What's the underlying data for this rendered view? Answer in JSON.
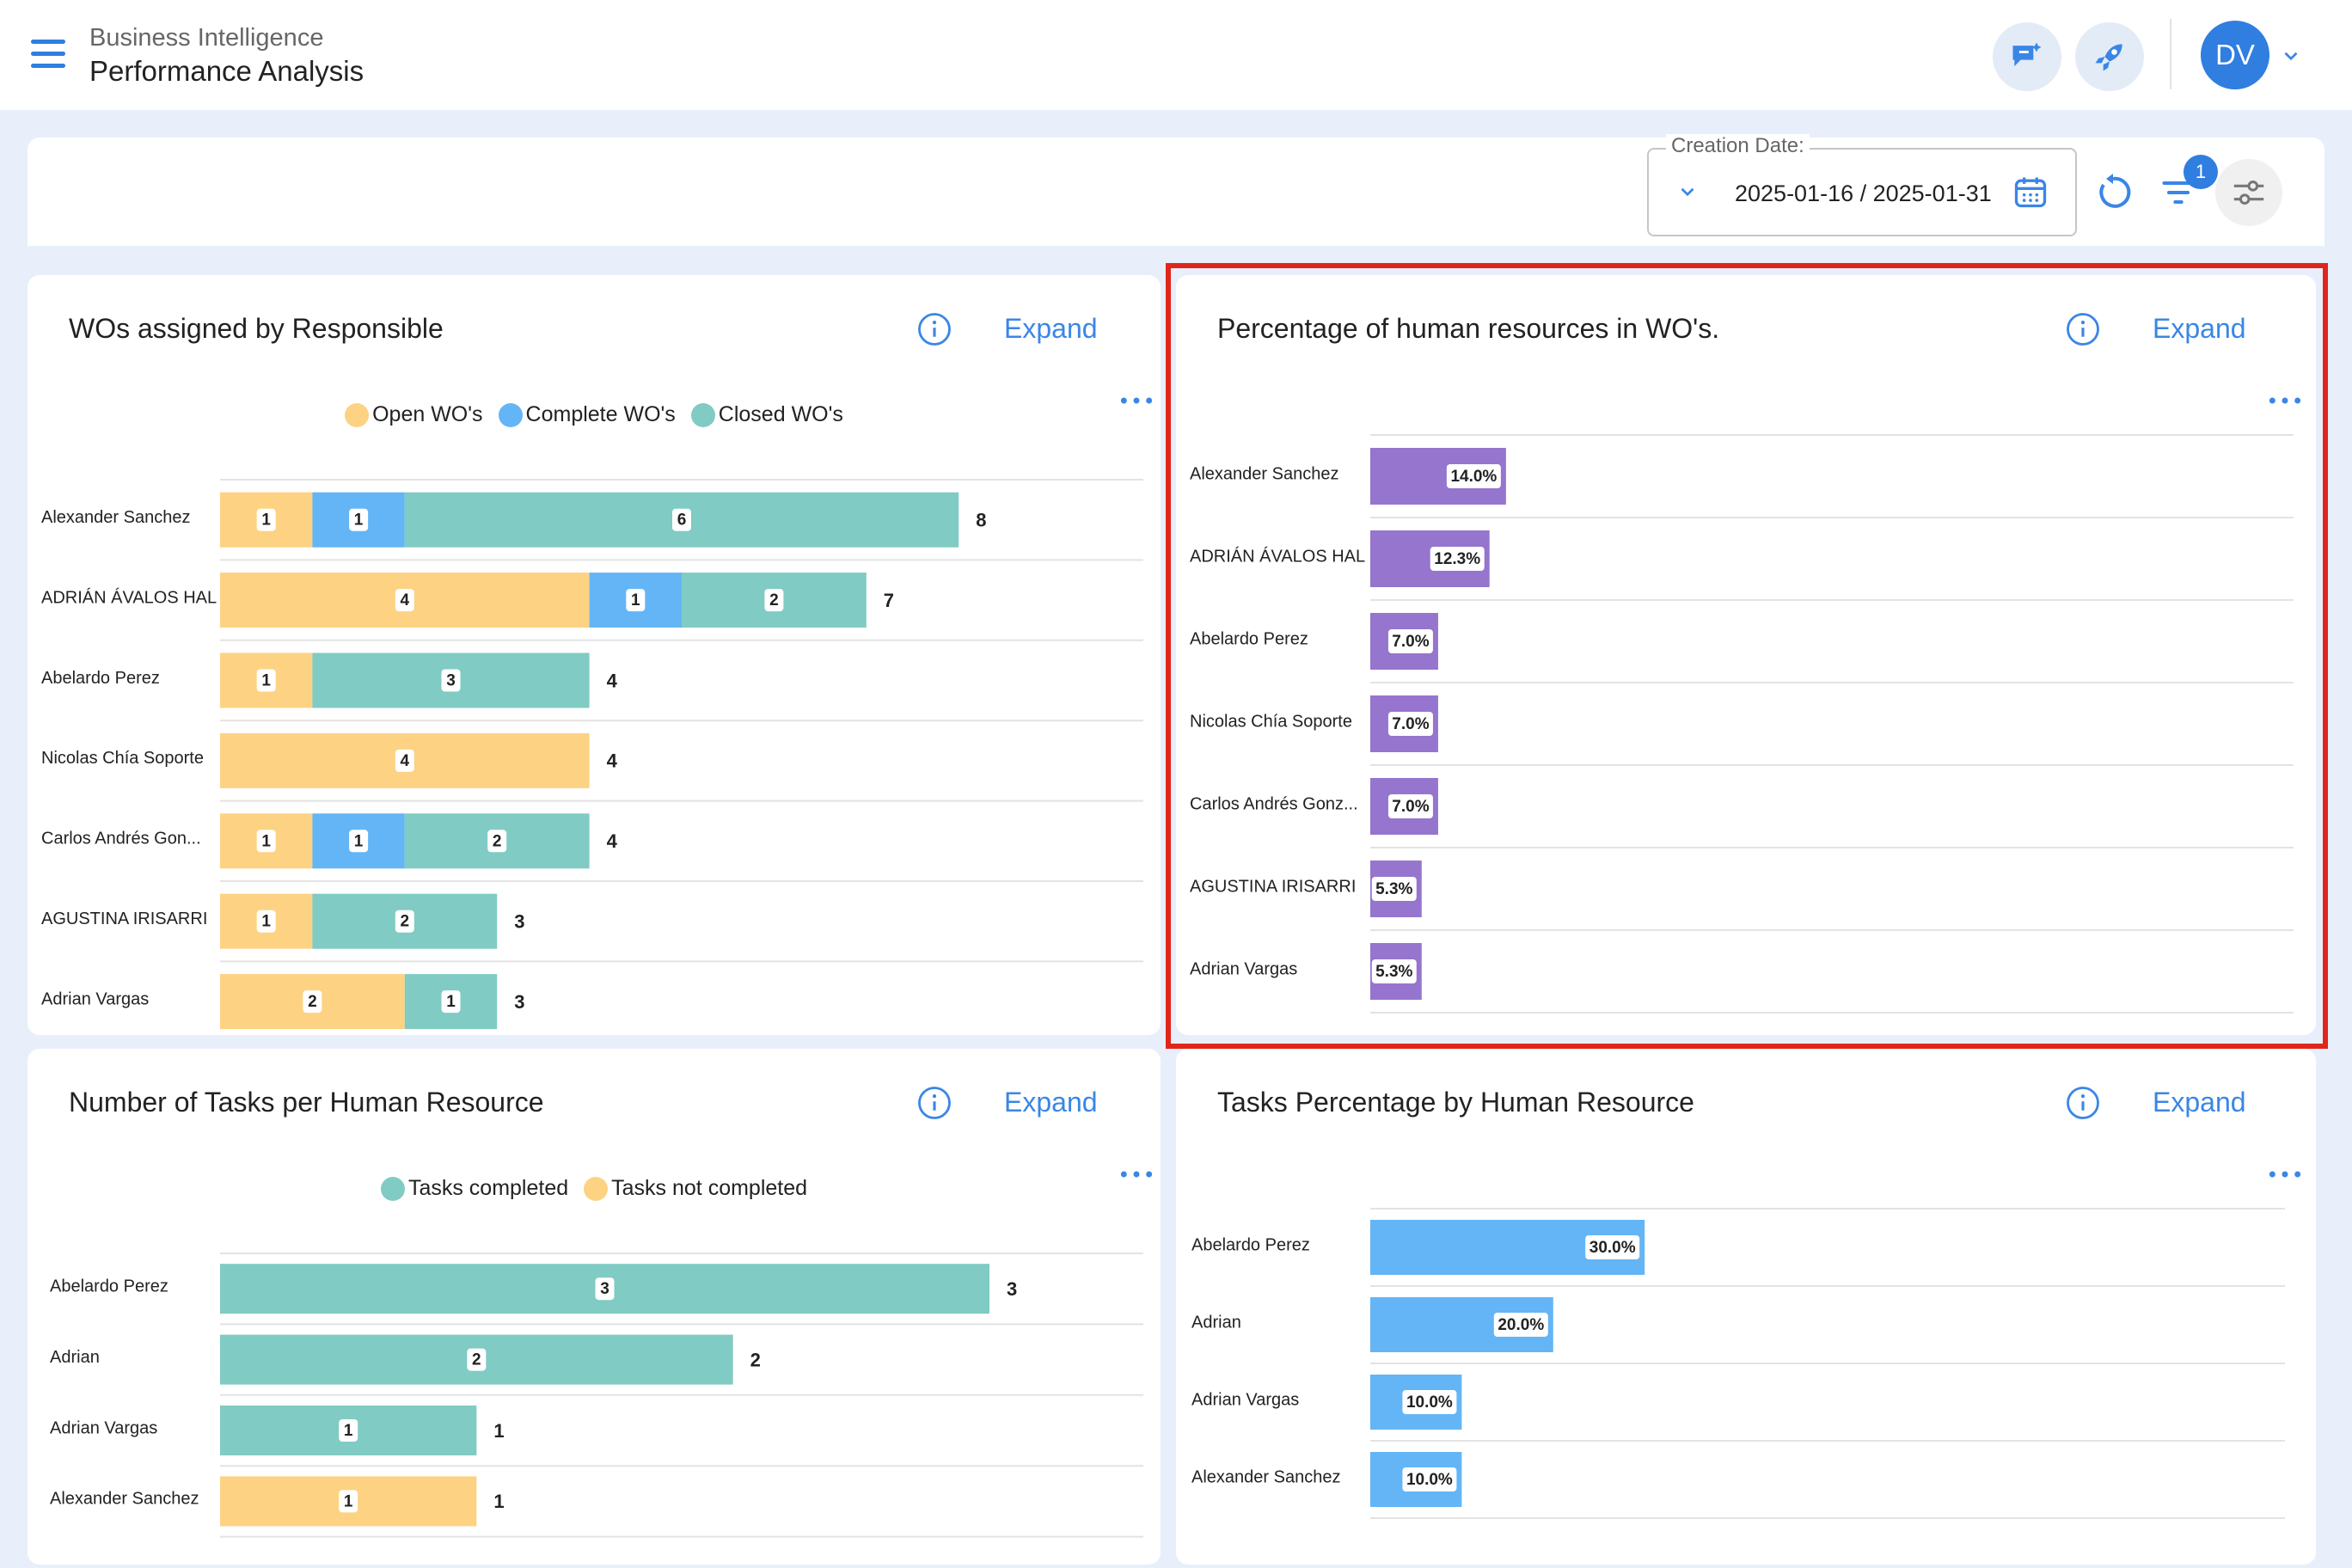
{
  "header": {
    "breadcrumb_parent": "Business Intelligence",
    "page_title": "Performance Analysis",
    "avatar_initials": "DV"
  },
  "filters": {
    "creation_date_label": "Creation Date:",
    "date_range": "2025-01-16 / 2025-01-31",
    "active_filter_count": "1"
  },
  "colors": {
    "open": "#fdd283",
    "complete": "#64b5f6",
    "closed": "#80cbc4",
    "purple": "#9575cd",
    "blue_bar": "#64b5f6",
    "accent": "#2f7ee0",
    "highlight": "#e0261a"
  },
  "common": {
    "expand_label": "Expand"
  },
  "cards": {
    "wo_by_responsible": {
      "title": "WOs assigned by Responsible",
      "legend": [
        "Open WO's",
        "Complete WO's",
        "Closed WO's"
      ]
    },
    "hr_percentage": {
      "title": "Percentage of human resources in WO's."
    },
    "tasks_per_hr": {
      "title": "Number of Tasks per Human Resource",
      "legend": [
        "Tasks completed",
        "Tasks not completed"
      ]
    },
    "tasks_percentage": {
      "title": "Tasks Percentage by Human Resource"
    }
  },
  "chart_data": [
    {
      "id": "wo_by_responsible",
      "type": "bar",
      "orientation": "horizontal",
      "stacked": true,
      "categories": [
        "Alexander Sanchez",
        "ADRIÁN ÁVALOS HAL",
        "Abelardo Perez",
        "Nicolas Chía Soporte",
        "Carlos Andrés Gon...",
        "AGUSTINA IRISARRI",
        "Adrian Vargas"
      ],
      "series": [
        {
          "name": "Open WO's",
          "values": [
            1,
            4,
            1,
            4,
            1,
            1,
            2
          ]
        },
        {
          "name": "Complete WO's",
          "values": [
            1,
            1,
            0,
            0,
            1,
            0,
            0
          ]
        },
        {
          "name": "Closed WO's",
          "values": [
            6,
            2,
            3,
            0,
            2,
            2,
            1
          ]
        }
      ],
      "totals": [
        8,
        7,
        4,
        4,
        4,
        3,
        3
      ],
      "xlim": [
        0,
        10
      ],
      "legend": "top-center",
      "grid": true
    },
    {
      "id": "hr_percentage",
      "type": "bar",
      "orientation": "horizontal",
      "categories": [
        "Alexander Sanchez",
        "ADRIÁN ÁVALOS HAL",
        "Abelardo Perez",
        "Nicolas Chía Soporte",
        "Carlos Andrés Gonz...",
        "AGUSTINA IRISARRI",
        "Adrian Vargas"
      ],
      "values": [
        14.0,
        12.3,
        7.0,
        7.0,
        7.0,
        5.3,
        5.3
      ],
      "labels": [
        "14.0%",
        "12.3%",
        "7.0%",
        "7.0%",
        "7.0%",
        "5.3%",
        "5.3%"
      ],
      "xlim": [
        0,
        100
      ],
      "grid": true
    },
    {
      "id": "tasks_per_hr",
      "type": "bar",
      "orientation": "horizontal",
      "stacked": true,
      "categories": [
        "Abelardo Perez",
        "Adrian",
        "Adrian Vargas",
        "Alexander Sanchez"
      ],
      "series": [
        {
          "name": "Tasks completed",
          "values": [
            3,
            2,
            1,
            0
          ]
        },
        {
          "name": "Tasks not completed",
          "values": [
            0,
            0,
            0,
            1
          ]
        }
      ],
      "totals": [
        3,
        2,
        1,
        1
      ],
      "xlim": [
        0,
        3.6
      ],
      "legend": "top-center",
      "grid": true
    },
    {
      "id": "tasks_percentage",
      "type": "bar",
      "orientation": "horizontal",
      "categories": [
        "Abelardo Perez",
        "Adrian",
        "Adrian Vargas",
        "Alexander Sanchez"
      ],
      "values": [
        30.0,
        20.0,
        10.0,
        10.0
      ],
      "labels": [
        "30.0%",
        "20.0%",
        "10.0%",
        "10.0%"
      ],
      "xlim": [
        0,
        100
      ],
      "grid": true
    }
  ]
}
